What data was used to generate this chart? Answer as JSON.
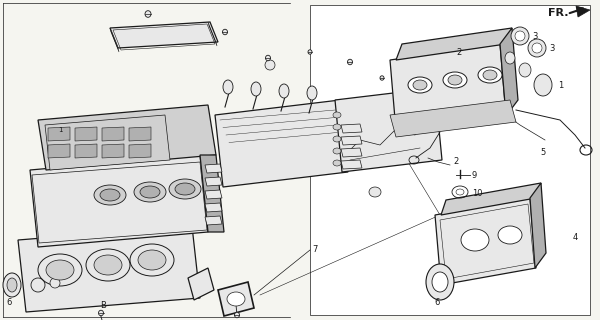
{
  "bg_color": "#f5f5f0",
  "line_color": "#1a1a1a",
  "fill_light": "#e8e8e8",
  "fill_mid": "#d0d0d0",
  "fill_dark": "#b0b0b0",
  "fill_white": "#ffffff",
  "figsize": [
    6.0,
    3.2
  ],
  "dpi": 100,
  "fr_label": "FR.",
  "border_color": "#888888"
}
